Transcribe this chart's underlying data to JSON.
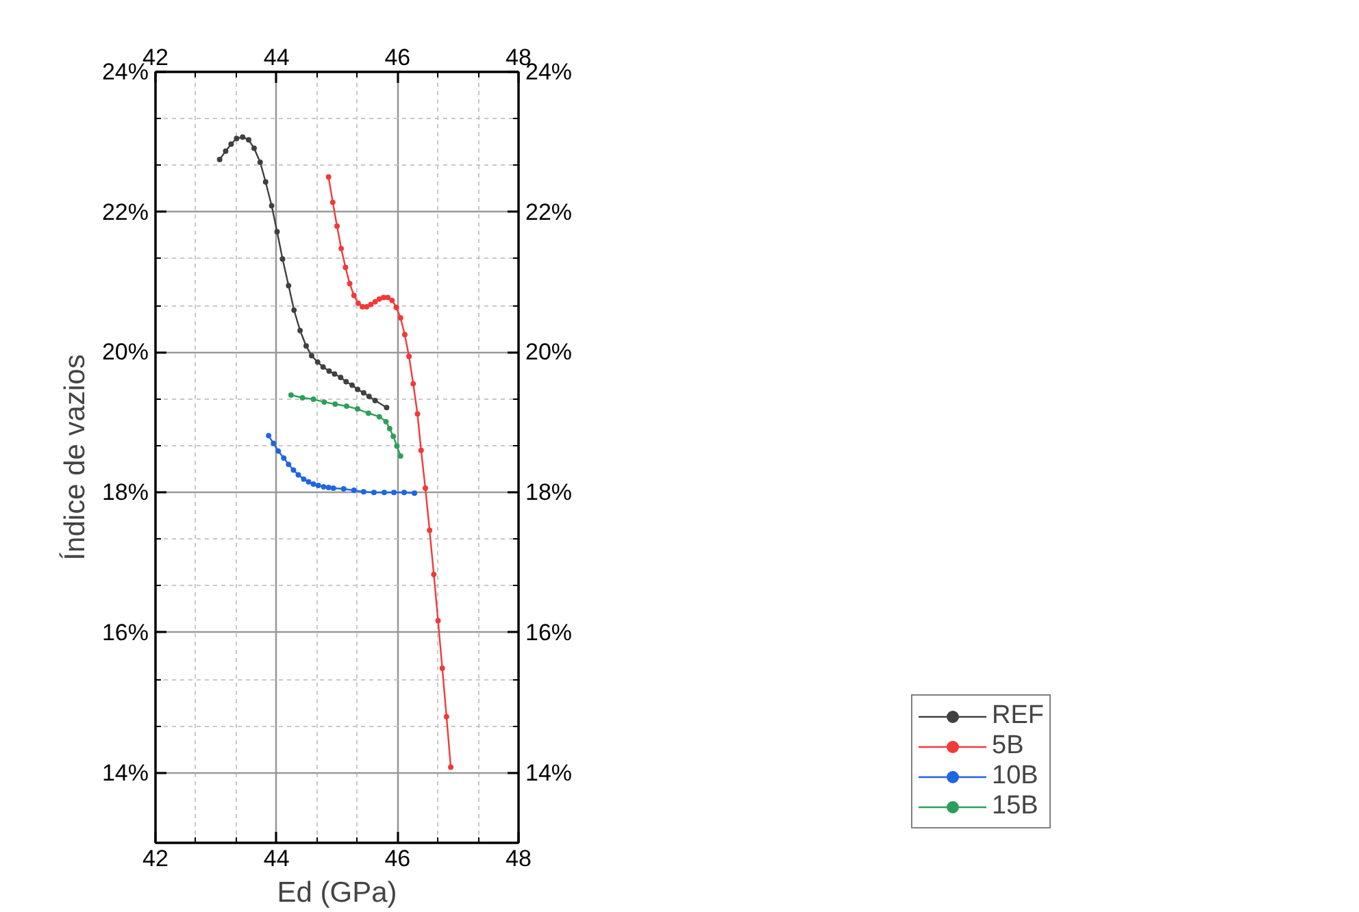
{
  "chart_data": {
    "type": "line",
    "xlabel": "Ed (GPa)",
    "ylabel": "Índice de vazios",
    "xlim": [
      42,
      48
    ],
    "xticks": [
      42,
      44,
      46,
      48
    ],
    "x2lim": [
      42,
      48
    ],
    "x2ticks": [
      42,
      44,
      46,
      48
    ],
    "ylim": [
      13,
      24
    ],
    "yticks": [
      {
        "value": 14,
        "label": "14%"
      },
      {
        "value": 16,
        "label": "16%"
      },
      {
        "value": 18,
        "label": "18%"
      },
      {
        "value": 20,
        "label": "20%"
      },
      {
        "value": 22,
        "label": "22%"
      },
      {
        "value": 24,
        "label": "24%"
      }
    ],
    "y2lim": [
      13,
      24
    ],
    "y2ticks": [
      {
        "value": 14,
        "label": "14%"
      },
      {
        "value": 16,
        "label": "16%"
      },
      {
        "value": 18,
        "label": "18%"
      },
      {
        "value": 20,
        "label": "20%"
      },
      {
        "value": 22,
        "label": "22%"
      },
      {
        "value": 24,
        "label": "24%"
      }
    ],
    "grid": true,
    "legend": "bottom right",
    "marker": "circle",
    "line_style": "solid",
    "series": [
      {
        "name": "REF",
        "color": "#404040",
        "x": [
          43.06,
          43.16,
          43.25,
          43.34,
          43.44,
          43.54,
          43.63,
          43.73,
          43.82,
          43.92,
          44.01,
          44.1,
          44.2,
          44.29,
          44.39,
          44.49,
          44.58,
          44.68,
          44.77,
          44.87,
          44.96,
          45.06,
          45.15,
          45.25,
          45.34,
          45.44,
          45.53,
          45.63,
          45.82
        ],
        "values": [
          22.75,
          22.87,
          22.97,
          23.05,
          23.07,
          23.03,
          22.91,
          22.71,
          22.43,
          22.09,
          21.72,
          21.33,
          20.95,
          20.6,
          20.31,
          20.09,
          19.95,
          19.86,
          19.79,
          19.73,
          19.69,
          19.64,
          19.58,
          19.53,
          19.47,
          19.42,
          19.37,
          19.31,
          19.21
        ]
      },
      {
        "name": "5B",
        "color": "#f03a3a",
        "x": [
          44.86,
          44.93,
          45.0,
          45.07,
          45.14,
          45.21,
          45.28,
          45.35,
          45.42,
          45.49,
          45.56,
          45.63,
          45.7,
          45.77,
          45.84,
          45.91,
          45.98,
          46.05,
          46.12,
          46.19,
          46.26,
          46.33,
          46.39,
          46.46,
          46.53,
          46.6,
          46.67,
          46.74,
          46.81,
          46.88
        ],
        "values": [
          22.5,
          22.14,
          21.8,
          21.48,
          21.21,
          20.98,
          20.81,
          20.7,
          20.65,
          20.65,
          20.68,
          20.72,
          20.76,
          20.78,
          20.78,
          20.74,
          20.64,
          20.49,
          20.25,
          19.94,
          19.55,
          19.12,
          18.6,
          18.06,
          17.46,
          16.83,
          16.17,
          15.49,
          14.8,
          14.08
        ]
      },
      {
        "name": "10B",
        "color": "#1f66e0",
        "x": [
          43.87,
          43.95,
          44.03,
          44.12,
          44.2,
          44.28,
          44.36,
          44.45,
          44.53,
          44.61,
          44.69,
          44.78,
          44.86,
          44.94,
          45.11,
          45.28,
          45.44,
          45.61,
          45.78,
          45.94,
          46.11,
          46.28
        ],
        "values": [
          18.81,
          18.7,
          18.59,
          18.49,
          18.4,
          18.32,
          18.25,
          18.19,
          18.15,
          18.12,
          18.1,
          18.08,
          18.07,
          18.06,
          18.05,
          18.03,
          18.01,
          18.0,
          18.0,
          18.0,
          18.0,
          17.99
        ]
      },
      {
        "name": "15B",
        "color": "#2ca05a",
        "x": [
          44.24,
          44.43,
          44.61,
          44.79,
          44.97,
          45.16,
          45.34,
          45.52,
          45.7,
          45.81,
          45.87,
          45.93,
          45.99,
          46.05
        ],
        "values": [
          19.39,
          19.35,
          19.33,
          19.29,
          19.26,
          19.23,
          19.19,
          19.13,
          19.08,
          19.01,
          18.91,
          18.8,
          18.66,
          18.52
        ]
      }
    ]
  }
}
